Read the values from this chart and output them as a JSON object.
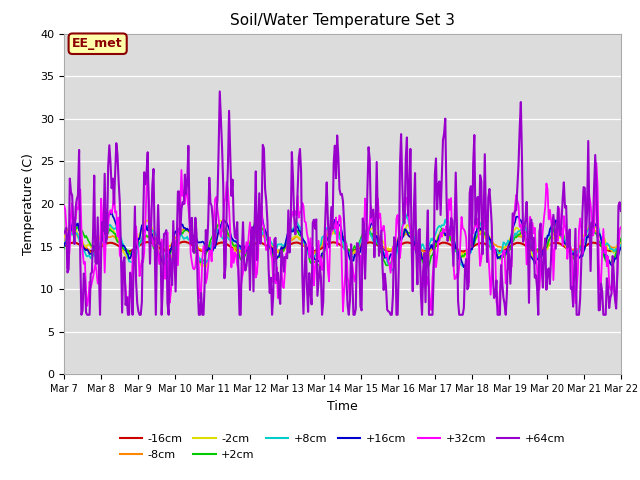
{
  "title": "Soil/Water Temperature Set 3",
  "xlabel": "Time",
  "ylabel": "Temperature (C)",
  "ylim": [
    0,
    40
  ],
  "yticks": [
    0,
    5,
    10,
    15,
    20,
    25,
    30,
    35,
    40
  ],
  "background_color": "#dcdcdc",
  "annotation_text": "EE_met",
  "annotation_bg": "#ffffaa",
  "annotation_border": "#8B0000",
  "series_order": [
    "-16cm",
    "-8cm",
    "-2cm",
    "+2cm",
    "+8cm",
    "+16cm",
    "+32cm",
    "+64cm"
  ],
  "series": {
    "-16cm": {
      "color": "#cc0000",
      "lw": 1.5,
      "base": 15.0,
      "amp": 0.5,
      "noise": 0.4,
      "smooth": 60
    },
    "-8cm": {
      "color": "#ff8800",
      "lw": 1.2,
      "base": 15.5,
      "amp": 1.0,
      "noise": 1.2,
      "smooth": 20
    },
    "-2cm": {
      "color": "#dddd00",
      "lw": 1.2,
      "base": 15.5,
      "amp": 1.5,
      "noise": 1.8,
      "smooth": 14
    },
    "+2cm": {
      "color": "#00cc00",
      "lw": 1.2,
      "base": 15.5,
      "amp": 1.6,
      "noise": 2.0,
      "smooth": 12
    },
    "+8cm": {
      "color": "#00cccc",
      "lw": 1.2,
      "base": 15.5,
      "amp": 1.7,
      "noise": 2.1,
      "smooth": 11
    },
    "+16cm": {
      "color": "#0000cc",
      "lw": 1.2,
      "base": 15.5,
      "amp": 1.8,
      "noise": 2.2,
      "smooth": 10
    },
    "+32cm": {
      "color": "#ff00ff",
      "lw": 1.3,
      "base": 15.5,
      "amp": 3.5,
      "noise": 4.5,
      "smooth": 3
    },
    "+64cm": {
      "color": "#9900cc",
      "lw": 1.5,
      "base": 15.5,
      "amp": 5.5,
      "noise": 7.0,
      "smooth": 2
    }
  },
  "n_points": 480,
  "t_start": 0,
  "t_end": 15,
  "seed": 7,
  "xtick_labels": [
    "Mar 7",
    "Mar 8",
    "Mar 9",
    "Mar 10",
    "Mar 11",
    "Mar 12",
    "Mar 13",
    "Mar 14",
    "Mar 15",
    "Mar 16",
    "Mar 17",
    "Mar 18",
    "Mar 19",
    "Mar 20",
    "Mar 21",
    "Mar 22"
  ],
  "xtick_positions": [
    0,
    1,
    2,
    3,
    4,
    5,
    6,
    7,
    8,
    9,
    10,
    11,
    12,
    13,
    14,
    15
  ],
  "legend_row1": [
    "-16cm",
    "-8cm",
    "-2cm",
    "+2cm",
    "+8cm",
    "+16cm"
  ],
  "legend_row2": [
    "+32cm",
    "+64cm"
  ]
}
